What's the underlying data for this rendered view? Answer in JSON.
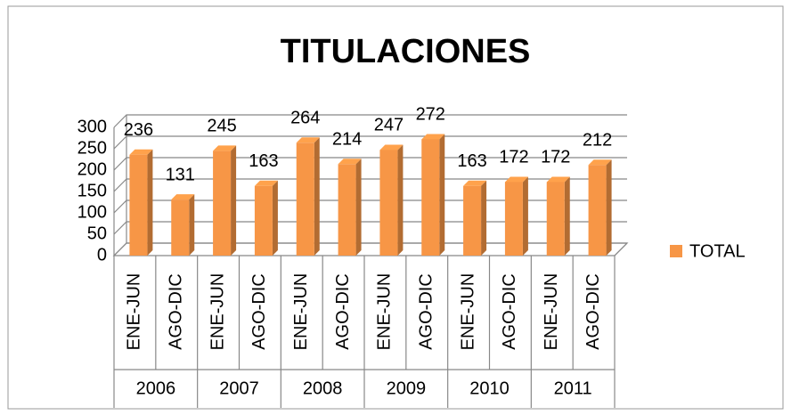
{
  "chart_data": {
    "type": "bar",
    "title": "TITULACIONES",
    "categories": [
      "ENE-JUN",
      "AGO-DIC",
      "ENE-JUN",
      "AGO-DIC",
      "ENE-JUN",
      "AGO-DIC",
      "ENE-JUN",
      "AGO-DIC",
      "ENE-JUN",
      "AGO-DIC",
      "ENE-JUN",
      "AGO-DIC"
    ],
    "groups": [
      "2006",
      "2007",
      "2008",
      "2009",
      "2010",
      "2011"
    ],
    "series": [
      {
        "name": "TOTAL",
        "color": "#f79646",
        "values": [
          236,
          131,
          245,
          163,
          264,
          214,
          247,
          272,
          163,
          172,
          172,
          212
        ]
      }
    ],
    "ylim": [
      0,
      300
    ],
    "yticks": [
      0,
      50,
      100,
      150,
      200,
      250,
      300
    ],
    "grid": true,
    "legend": "right"
  }
}
